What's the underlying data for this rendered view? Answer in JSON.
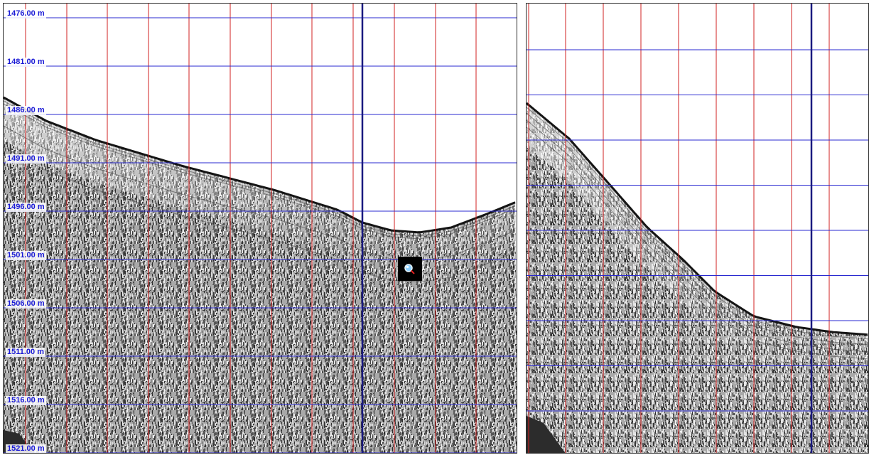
{
  "left_panel": {
    "depth_labels": [
      "1476.00 m",
      "1481.00 m",
      "1486.00 m",
      "1491.00 m",
      "1496.00 m",
      "1501.00 m",
      "1506.00 m",
      "1511.00 m",
      "1516.00 m",
      "1521.00 m"
    ]
  },
  "right_panel": {},
  "colors": {
    "depth_gridline": "#2a2ad0",
    "trace_gridline": "#d22020",
    "cursor_line": "#1a1a80",
    "label_text": "#1a1ad6",
    "seabed_reflector": "#151515",
    "noise_dark": "#2b2b2b",
    "noise_light": "#f0f0f0",
    "water_column": "#ffffff"
  },
  "icons": {
    "cursor_tool": "magnifier-cursor-icon"
  }
}
